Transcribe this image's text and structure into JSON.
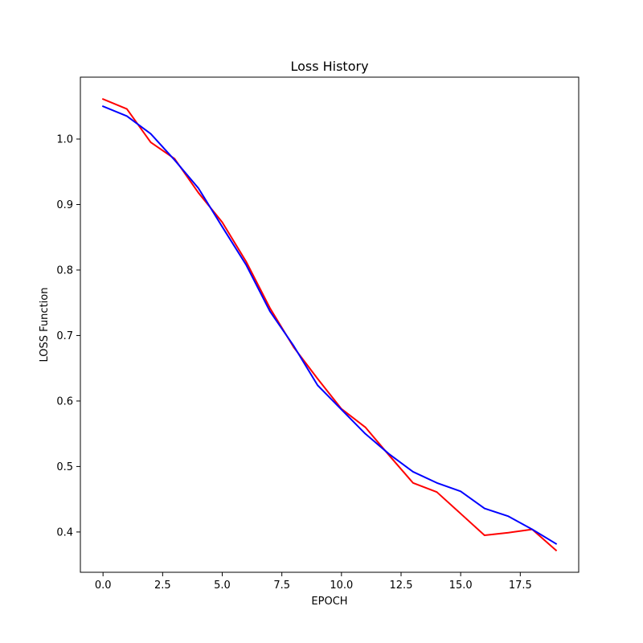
{
  "chart_data": {
    "type": "line",
    "title": "Loss History",
    "xlabel": "EPOCH",
    "ylabel": "LOSS Function",
    "xlim": [
      -0.95,
      19.95
    ],
    "ylim": [
      0.3385,
      1.0945
    ],
    "xticks": [
      0.0,
      2.5,
      5.0,
      7.5,
      10.0,
      12.5,
      15.0,
      17.5
    ],
    "xtick_labels": [
      "0.0",
      "2.5",
      "5.0",
      "7.5",
      "10.0",
      "12.5",
      "15.0",
      "17.5"
    ],
    "yticks": [
      0.4,
      0.5,
      0.6,
      0.7,
      0.8,
      0.9,
      1.0
    ],
    "ytick_labels": [
      "0.4",
      "0.5",
      "0.6",
      "0.7",
      "0.8",
      "0.9",
      "1.0"
    ],
    "grid": false,
    "x": [
      0,
      1,
      2,
      3,
      4,
      5,
      6,
      7,
      8,
      9,
      10,
      11,
      12,
      13,
      14,
      15,
      16,
      17,
      18,
      19
    ],
    "series": [
      {
        "color": "#ff0000",
        "values": [
          1.061,
          1.046,
          0.995,
          0.97,
          0.918,
          0.873,
          0.813,
          0.742,
          0.682,
          0.634,
          0.588,
          0.56,
          0.517,
          0.475,
          0.461,
          0.428,
          0.395,
          0.399,
          0.404,
          0.372
        ]
      },
      {
        "color": "#0000ff",
        "values": [
          1.05,
          1.035,
          1.008,
          0.968,
          0.925,
          0.866,
          0.808,
          0.737,
          0.684,
          0.624,
          0.587,
          0.55,
          0.519,
          0.492,
          0.475,
          0.462,
          0.436,
          0.424,
          0.404,
          0.382
        ]
      }
    ]
  }
}
